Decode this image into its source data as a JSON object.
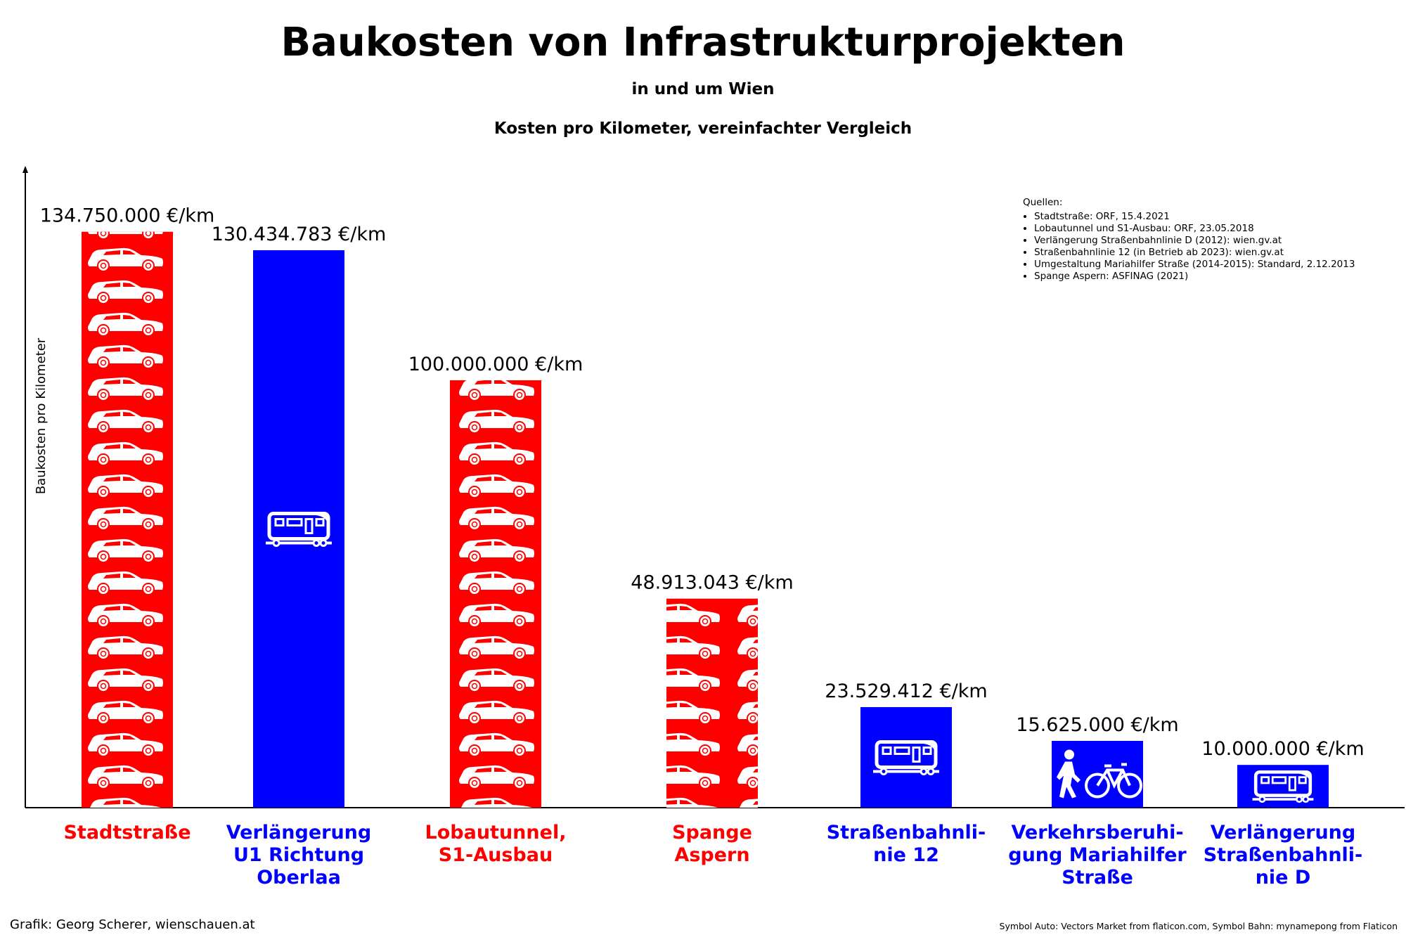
{
  "chart_data": {
    "type": "bar",
    "title": "Baukosten von Infrastrukturprojekten",
    "subtitle": "in und um Wien",
    "subtitle2": "Kosten pro Kilometer, vereinfachter Vergleich",
    "ylabel": "Baukosten pro Kilometer",
    "ylim": [
      0,
      150000000
    ],
    "categories": [
      "Stadtstraße",
      "Verlängerung U1 Richtung Oberlaa",
      "Lobautunnel, S1-Ausbau",
      "Spange Aspern",
      "Straßenbahnli-nie 12",
      "Verkehrsberuhi-gung Mariahilfer Straße",
      "Verlängerung Straßenbahnli-nie D"
    ],
    "category_lines": [
      [
        "Stadtstraße"
      ],
      [
        "Verlängerung",
        "U1 Richtung",
        "Oberlaa"
      ],
      [
        "Lobautunnel,",
        "S1-Ausbau"
      ],
      [
        "Spange",
        "Aspern"
      ],
      [
        "Straßenbahnli-",
        "nie 12"
      ],
      [
        "Verkehrsberuhi-",
        "gung Mariahilfer",
        "Straße"
      ],
      [
        "Verlängerung",
        "Straßenbahnli-",
        "nie D"
      ]
    ],
    "values": [
      134750000,
      130434783,
      100000000,
      48913043,
      23529412,
      15625000,
      10000000
    ],
    "value_labels": [
      "134.750.000 €/km",
      "130.434.783 €/km",
      "100.000.000 €/km",
      "48.913.043 €/km",
      "23.529.412 €/km",
      "15.625.000 €/km",
      "10.000.000 €/km"
    ],
    "bar_colors": [
      "#ff0000",
      "#0000ff",
      "#ff0000",
      "#0000ff",
      "#0000ff",
      "#0000ff",
      "#0000ff"
    ],
    "label_colors": [
      "#ff0000",
      "#0000ff",
      "#ff0000",
      "#ff0000",
      "#0000ff",
      "#0000ff",
      "#0000ff"
    ],
    "bar_colors_fixed": [
      "#ff0000",
      "#0000ff",
      "#ff0000",
      "#ff0000",
      "#0000ff",
      "#0000ff",
      "#0000ff"
    ],
    "bar_icons": [
      "car-pattern",
      "train-icon",
      "car-pattern",
      "car-pattern",
      "train-icon",
      "pedestrian-bicycle-icon",
      "train-icon"
    ],
    "grid": false
  },
  "sources": {
    "heading": "Quellen:",
    "items": [
      "Stadtstraße: ORF, 15.4.2021",
      "Lobautunnel und S1-Ausbau: ORF, 23.05.2018",
      "Verlängerung Straßenbahnlinie D (2012): wien.gv.at",
      "Straßenbahnlinie 12 (in Betrieb ab 2023): wien.gv.at",
      "Umgestaltung Mariahilfer Straße (2014-2015): Standard, 2.12.2013",
      "Spange Aspern: ASFINAG (2021)"
    ]
  },
  "credits": {
    "left": "Grafik: Georg Scherer, wienschauen.at",
    "right": "Symbol Auto: Vectors Market from flaticon.com, Symbol Bahn: mynamepong from Flaticon"
  }
}
